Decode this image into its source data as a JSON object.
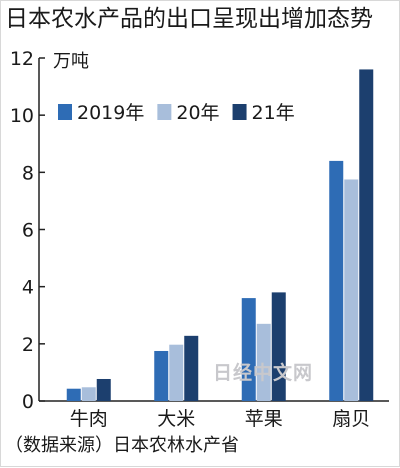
{
  "chart_data": {
    "type": "bar",
    "title": "日本农水产品的出口呈现出增加态势",
    "unit_label": "万吨",
    "categories": [
      "牛肉",
      "大米",
      "苹果",
      "扇贝"
    ],
    "series": [
      {
        "name": "2019年",
        "values": [
          0.43,
          1.75,
          3.6,
          8.4
        ],
        "color": "#2e6cb5"
      },
      {
        "name": "20年",
        "values": [
          0.48,
          1.97,
          2.7,
          7.75
        ],
        "color": "#a8bedb"
      },
      {
        "name": "21年",
        "values": [
          0.77,
          2.28,
          3.8,
          11.6
        ],
        "color": "#1c3f6e"
      }
    ],
    "yticks": [
      0,
      2,
      4,
      6,
      8,
      10,
      12
    ],
    "ylim": [
      0,
      12
    ],
    "grid": false,
    "legend_position": "top-left",
    "source": "（数据来源）日本农林水产省",
    "watermark": "日经中文网"
  }
}
